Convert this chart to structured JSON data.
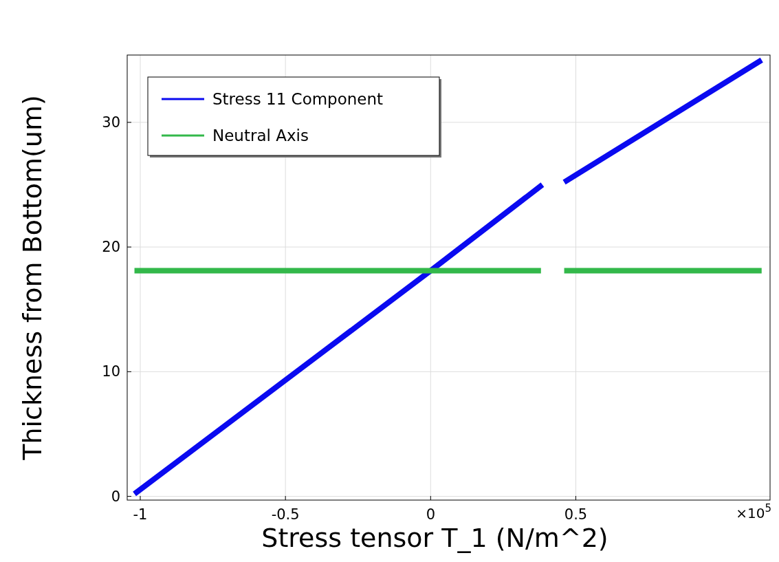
{
  "chart_data": {
    "type": "line",
    "xlabel": "Stress tensor T_1 (N/m^2)",
    "ylabel": "Thickness from Bottom(um)",
    "xlim": [
      -1.045,
      1.169
    ],
    "ylim": [
      -0.3,
      35.4
    ],
    "xticks": [
      -1,
      -0.5,
      0,
      0.5
    ],
    "yticks": [
      0,
      10,
      20,
      30
    ],
    "grid": true,
    "legend": "top left",
    "line_style": "solid",
    "marker": "none",
    "annotations": [
      "×10$^{5}$"
    ],
    "series": [
      {
        "name": "Stress 11 Component",
        "color": "#0a0af0",
        "x": [
          -1.02,
          0,
          0.385,
          null,
          0.46,
          1.14
        ],
        "values": [
          0.2,
          18.1,
          25,
          null,
          25.2,
          35
        ]
      },
      {
        "name": "Neutral Axis",
        "color": "#33b84a",
        "x": [
          -1.02,
          0.38,
          null,
          0.46,
          1.14
        ],
        "values": [
          18.1,
          18.1,
          null,
          18.1,
          18.1
        ]
      }
    ]
  }
}
